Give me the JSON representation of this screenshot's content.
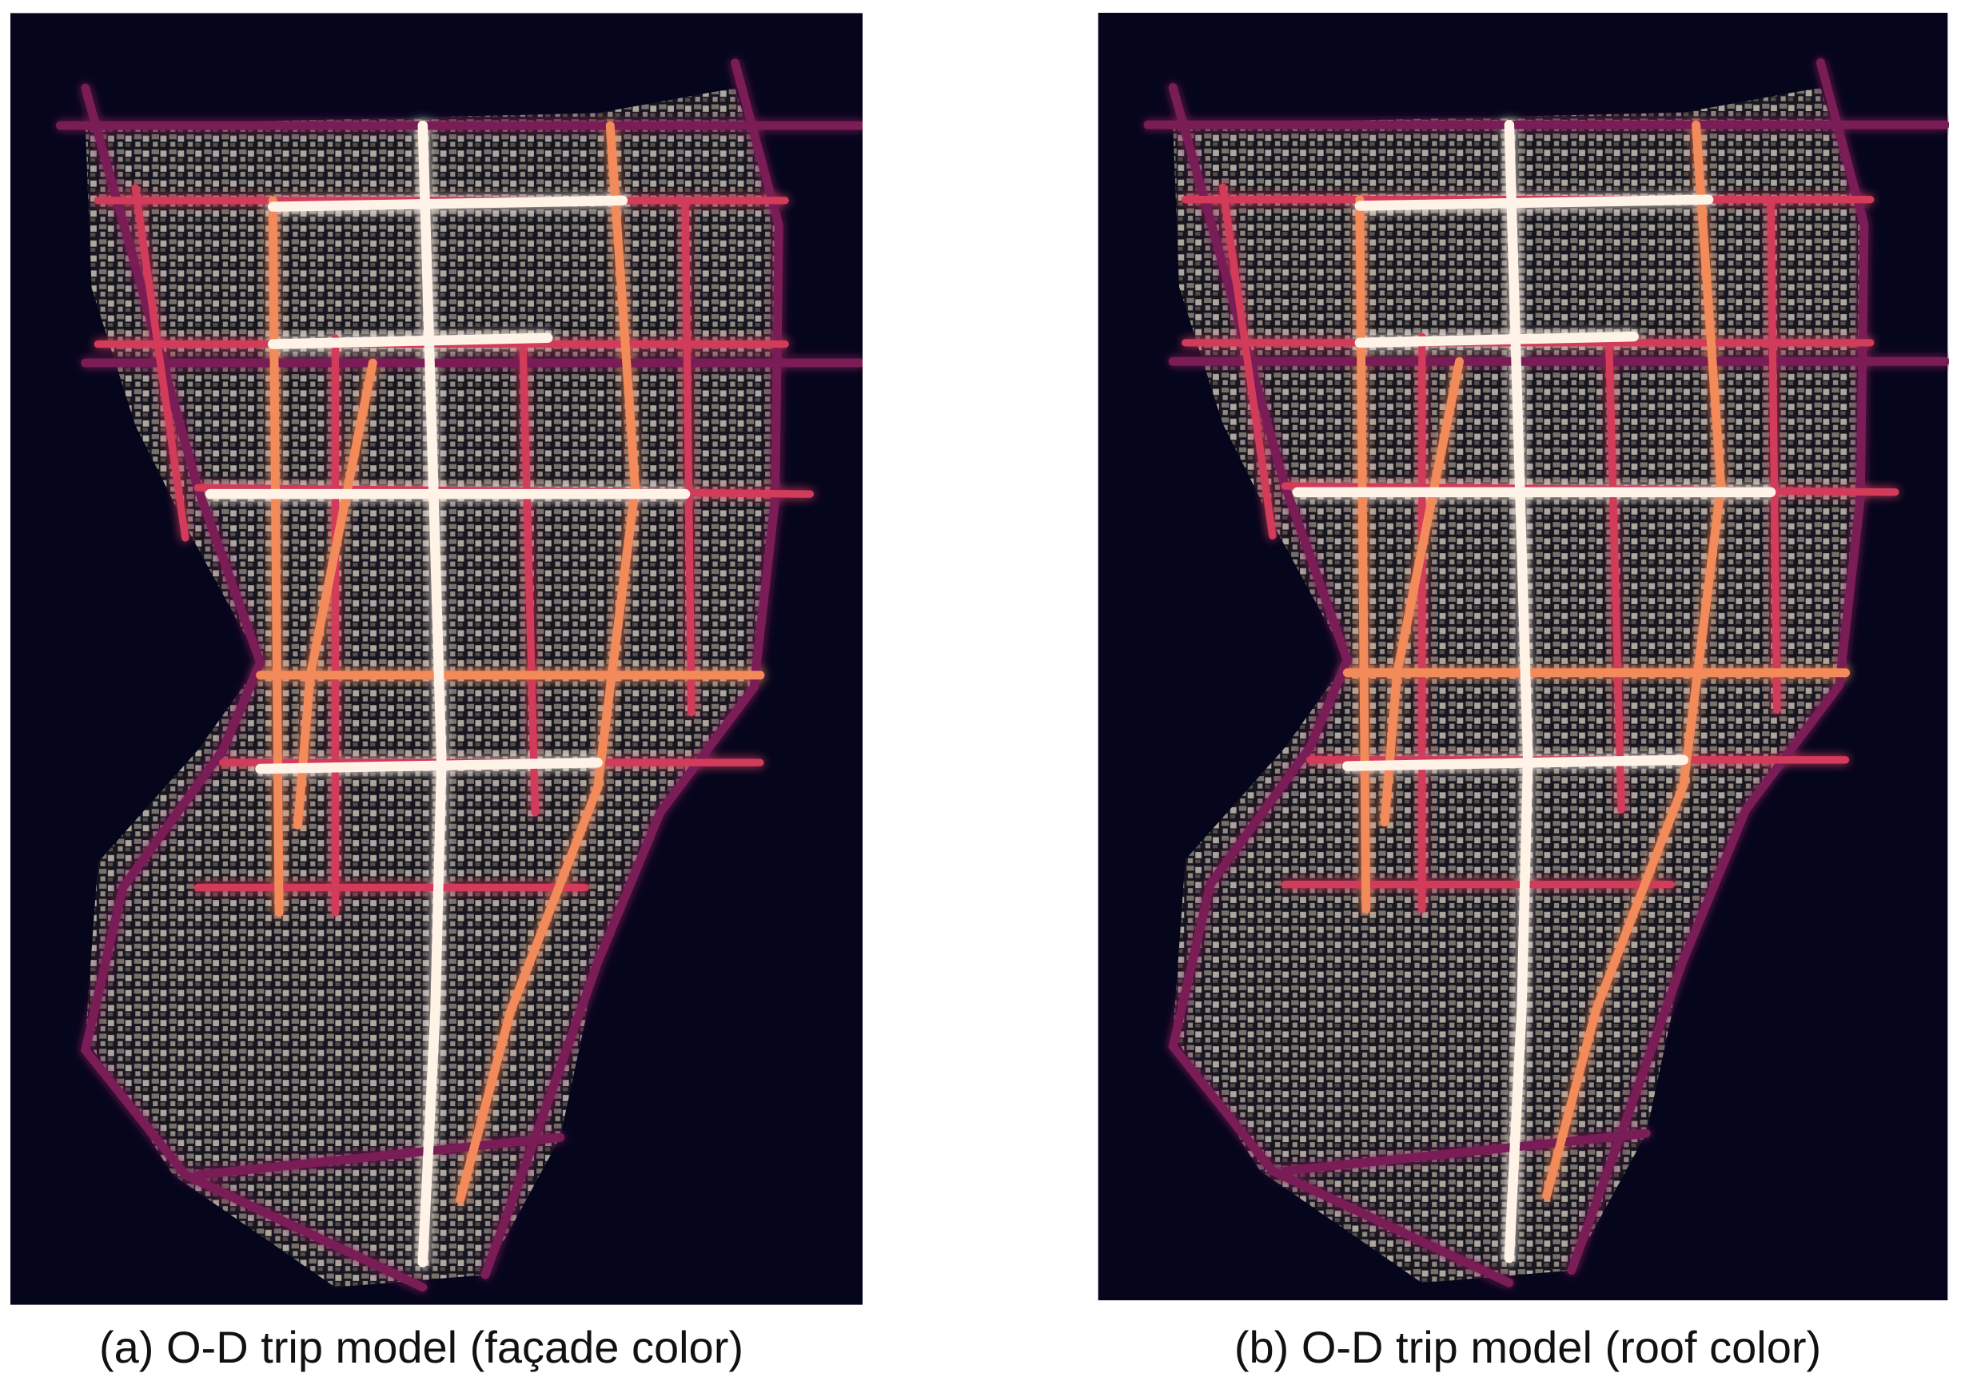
{
  "panels": [
    {
      "caption": "(a) O-D trip model (façade color)"
    },
    {
      "caption": "(b) O-D trip model (roof color)"
    }
  ]
}
